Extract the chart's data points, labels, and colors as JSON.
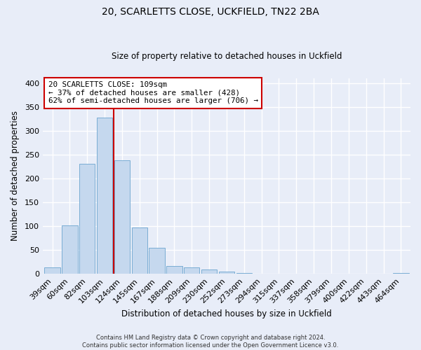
{
  "title": "20, SCARLETTS CLOSE, UCKFIELD, TN22 2BA",
  "subtitle": "Size of property relative to detached houses in Uckfield",
  "xlabel": "Distribution of detached houses by size in Uckfield",
  "ylabel": "Number of detached properties",
  "bar_labels": [
    "39sqm",
    "60sqm",
    "82sqm",
    "103sqm",
    "124sqm",
    "145sqm",
    "167sqm",
    "188sqm",
    "209sqm",
    "230sqm",
    "252sqm",
    "273sqm",
    "294sqm",
    "315sqm",
    "337sqm",
    "358sqm",
    "379sqm",
    "400sqm",
    "422sqm",
    "443sqm",
    "464sqm"
  ],
  "bar_values": [
    13,
    102,
    230,
    328,
    238,
    97,
    55,
    16,
    14,
    9,
    5,
    2,
    1,
    1,
    0,
    0,
    0,
    1,
    0,
    0,
    2
  ],
  "bar_color": "#c5d8ee",
  "bar_edge_color": "#7aadd4",
  "vline_x": 3.5,
  "vline_color": "#cc0000",
  "ylim": [
    0,
    410
  ],
  "yticks": [
    0,
    50,
    100,
    150,
    200,
    250,
    300,
    350,
    400
  ],
  "annotation_title": "20 SCARLETTS CLOSE: 109sqm",
  "annotation_line1": "← 37% of detached houses are smaller (428)",
  "annotation_line2": "62% of semi-detached houses are larger (706) →",
  "annotation_box_color": "#ffffff",
  "annotation_box_edge": "#cc0000",
  "footer_line1": "Contains HM Land Registry data © Crown copyright and database right 2024.",
  "footer_line2": "Contains public sector information licensed under the Open Government Licence v3.0.",
  "background_color": "#e8edf8",
  "grid_color": "#ffffff",
  "fig_width": 6.0,
  "fig_height": 5.0
}
